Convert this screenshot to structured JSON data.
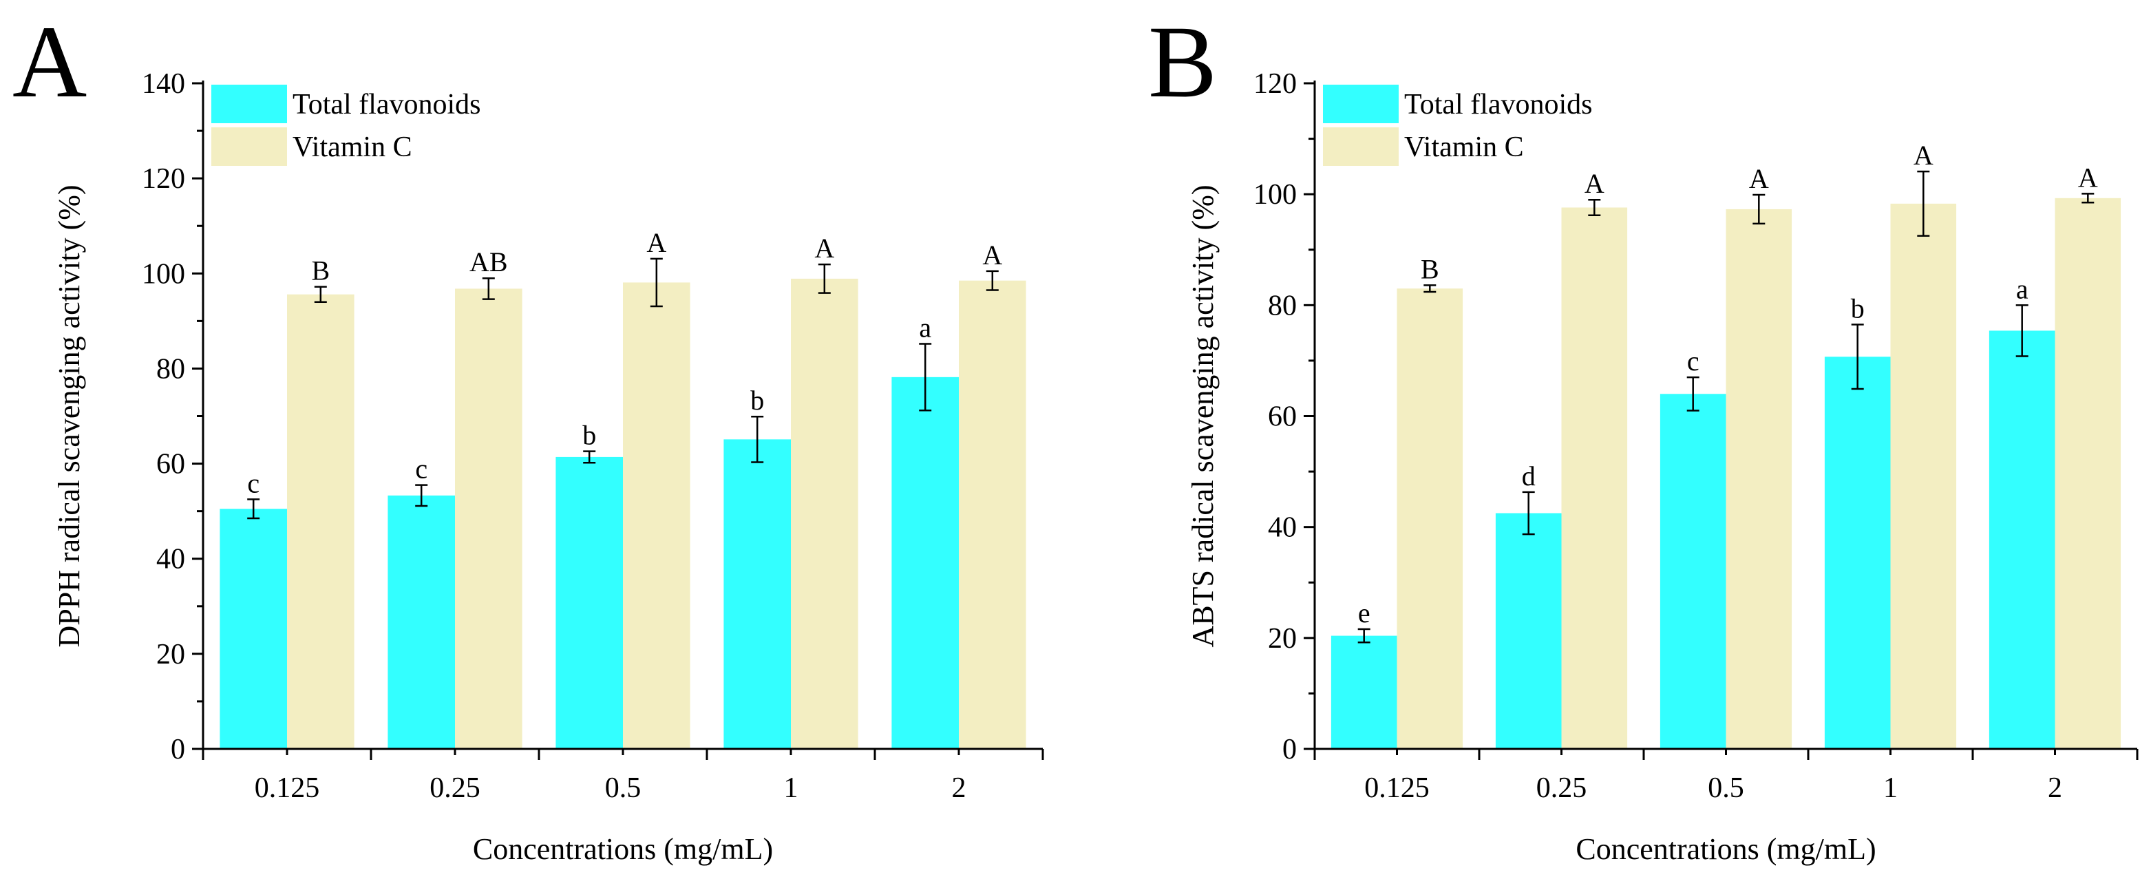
{
  "colors": {
    "total_flavonoids": "#33FFFF",
    "vitamin_c": "#F3EEC2"
  },
  "chart_data": [
    {
      "type": "bar",
      "panel": "A",
      "title": "",
      "xlabel": "Concentrations (mg/mL)",
      "ylabel": "DPPH radical scavenging activity (%)",
      "ylim": [
        0,
        140
      ],
      "yticks": [
        0,
        20,
        40,
        60,
        80,
        100,
        120,
        140
      ],
      "categories": [
        "0.125",
        "0.25",
        "0.5",
        "1",
        "2"
      ],
      "legend_position": "top-left",
      "series": [
        {
          "name": "Total flavonoids",
          "values": [
            50.5,
            53.3,
            61.4,
            65.1,
            78.2
          ],
          "errors": [
            2.0,
            2.2,
            1.2,
            4.8,
            7.0
          ],
          "labels": [
            "c",
            "c",
            "b",
            "b",
            "a"
          ]
        },
        {
          "name": "Vitamin C",
          "values": [
            95.6,
            96.8,
            98.1,
            98.9,
            98.5
          ],
          "errors": [
            1.6,
            2.2,
            5.0,
            3.0,
            2.0
          ],
          "labels": [
            "B",
            "AB",
            "A",
            "A",
            "A"
          ]
        }
      ]
    },
    {
      "type": "bar",
      "panel": "B",
      "title": "",
      "xlabel": "Concentrations (mg/mL)",
      "ylabel": "ABTS radical scavenging activity (%)",
      "ylim": [
        0,
        120
      ],
      "yticks": [
        0,
        20,
        40,
        60,
        80,
        100,
        120
      ],
      "categories": [
        "0.125",
        "0.25",
        "0.5",
        "1",
        "2"
      ],
      "legend_position": "top-left",
      "series": [
        {
          "name": "Total flavonoids",
          "values": [
            20.4,
            42.5,
            64.0,
            70.7,
            75.4
          ],
          "errors": [
            1.2,
            3.8,
            3.0,
            5.8,
            4.6
          ],
          "labels": [
            "e",
            "d",
            "c",
            "b",
            "a"
          ]
        },
        {
          "name": "Vitamin C",
          "values": [
            83.0,
            97.6,
            97.3,
            98.3,
            99.3
          ],
          "errors": [
            0.6,
            1.4,
            2.6,
            5.8,
            0.8
          ],
          "labels": [
            "B",
            "A",
            "A",
            "A",
            "A"
          ]
        }
      ]
    }
  ]
}
